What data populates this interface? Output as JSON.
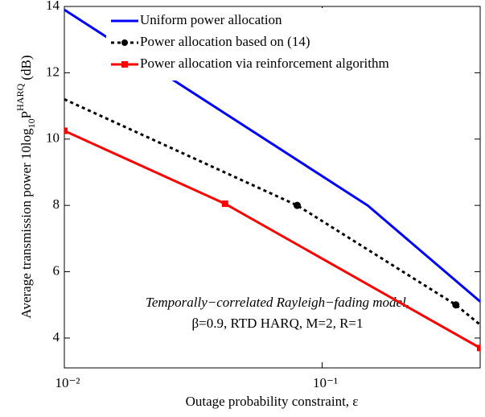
{
  "chart_data": {
    "type": "line",
    "xlabel": "Outage probability constraint, ε",
    "ylabel": [
      "Average transmission power 10log",
      "10",
      "P",
      "HARQ",
      " (dB)"
    ],
    "annotation": [
      "Temporally−correlated Rayleigh−fading model,",
      "β=0.9, RTD HARQ, M=2, R=1"
    ],
    "xscale": "log",
    "xlim": [
      0.01,
      0.41
    ],
    "ylim": [
      3.1,
      14
    ],
    "xticks": [
      {
        "value": 0.01,
        "label": "10⁻²"
      },
      {
        "value": 0.1,
        "label": "10⁻¹"
      }
    ],
    "yticks": [
      4,
      6,
      8,
      10,
      12,
      14
    ],
    "legend": "upper left",
    "series": [
      {
        "name": "Uniform power allocation",
        "color": "#0000ff",
        "marker": "none",
        "dash": "solid",
        "x": [
          0.01,
          0.15,
          0.41
        ],
        "values": [
          13.9,
          8,
          5.1
        ]
      },
      {
        "name": "Power allocation based on (14)",
        "color": "#000000",
        "marker": "circle",
        "dash": "dotted",
        "x": [
          0.08,
          0.33
        ],
        "values": [
          8,
          5
        ]
      },
      {
        "name": "Power allocation via reinforcement algorithm",
        "color": "#ff0000",
        "marker": "square",
        "dash": "solid",
        "x": [
          0.01,
          0.042,
          0.41
        ],
        "values": [
          10.25,
          8.05,
          3.7
        ]
      }
    ],
    "line_extensions": [
      {
        "series": 1,
        "x": [
          0.01,
          0.41
        ],
        "values": [
          11.2,
          4.4
        ]
      }
    ]
  }
}
